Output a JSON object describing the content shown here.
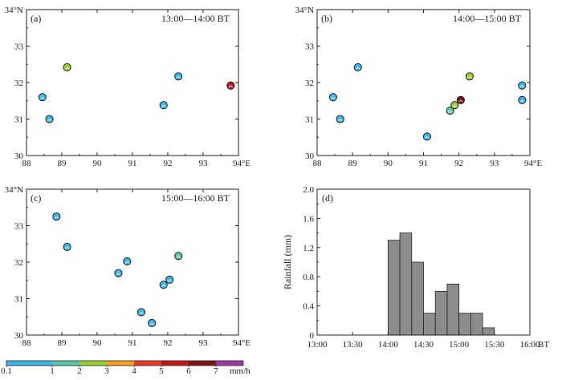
{
  "chart_data": [
    {
      "id": "a",
      "type": "scatter",
      "panel_label": "(a)",
      "time_label": "13:00—14:00 BT",
      "xlim": [
        88,
        94
      ],
      "ylim": [
        30,
        34
      ],
      "x_ticks": [
        "88",
        "89",
        "90",
        "91",
        "92",
        "93",
        "94°E"
      ],
      "y_ticks": [
        "30",
        "31",
        "32",
        "33",
        "34°N"
      ],
      "points": [
        {
          "lon": 89.15,
          "lat": 32.42,
          "rain": 2.5
        },
        {
          "lon": 88.45,
          "lat": 31.6,
          "rain": 0.5
        },
        {
          "lon": 88.65,
          "lat": 31.0,
          "rain": 0.5
        },
        {
          "lon": 91.88,
          "lat": 31.38,
          "rain": 0.5
        },
        {
          "lon": 92.3,
          "lat": 32.17,
          "rain": 0.5
        },
        {
          "lon": 93.78,
          "lat": 31.92,
          "rain": 5.5
        }
      ]
    },
    {
      "id": "b",
      "type": "scatter",
      "panel_label": "(b)",
      "time_label": "14:00—15:00 BT",
      "xlim": [
        88,
        94
      ],
      "ylim": [
        30,
        34
      ],
      "x_ticks": [
        "88",
        "89",
        "90",
        "91",
        "92",
        "93",
        "94°E"
      ],
      "y_ticks": [
        "30",
        "31",
        "32",
        "33",
        "34°N"
      ],
      "points": [
        {
          "lon": 89.15,
          "lat": 32.42,
          "rain": 0.5
        },
        {
          "lon": 88.45,
          "lat": 31.6,
          "rain": 0.5
        },
        {
          "lon": 88.65,
          "lat": 31.0,
          "rain": 0.5
        },
        {
          "lon": 91.1,
          "lat": 30.52,
          "rain": 0.5
        },
        {
          "lon": 91.75,
          "lat": 31.23,
          "rain": 1.5
        },
        {
          "lon": 91.88,
          "lat": 31.38,
          "rain": 2.5
        },
        {
          "lon": 92.05,
          "lat": 31.52,
          "rain": 6.5
        },
        {
          "lon": 92.3,
          "lat": 32.17,
          "rain": 2.5
        },
        {
          "lon": 93.78,
          "lat": 31.92,
          "rain": 0.5
        },
        {
          "lon": 93.78,
          "lat": 31.52,
          "rain": 0.5
        }
      ]
    },
    {
      "id": "c",
      "type": "scatter",
      "panel_label": "(c)",
      "time_label": "15:00—16:00 BT",
      "xlim": [
        88,
        94
      ],
      "ylim": [
        30,
        34
      ],
      "x_ticks": [
        "88",
        "89",
        "90",
        "91",
        "92",
        "93",
        "94°E"
      ],
      "y_ticks": [
        "30",
        "31",
        "32",
        "33",
        "34°N"
      ],
      "points": [
        {
          "lon": 88.85,
          "lat": 33.25,
          "rain": 0.5
        },
        {
          "lon": 89.15,
          "lat": 32.42,
          "rain": 0.5
        },
        {
          "lon": 90.85,
          "lat": 32.02,
          "rain": 0.5
        },
        {
          "lon": 90.6,
          "lat": 31.7,
          "rain": 0.5
        },
        {
          "lon": 91.25,
          "lat": 30.63,
          "rain": 0.5
        },
        {
          "lon": 91.55,
          "lat": 30.33,
          "rain": 0.5
        },
        {
          "lon": 91.88,
          "lat": 31.38,
          "rain": 0.5
        },
        {
          "lon": 92.05,
          "lat": 31.52,
          "rain": 0.5
        },
        {
          "lon": 92.3,
          "lat": 32.17,
          "rain": 1.5
        }
      ]
    },
    {
      "id": "d",
      "type": "bar",
      "panel_label": "(d)",
      "ylabel": "Rainfall (mm)",
      "ylim": [
        0,
        2.0
      ],
      "y_ticks": [
        "0",
        "0.4",
        "0.8",
        "1.2",
        "1.6",
        "2.0"
      ],
      "x_ticks": [
        "13:00",
        "13:30",
        "14:00",
        "14:30",
        "15:00",
        "15:30",
        "16:00"
      ],
      "x_unit": "BT",
      "x_range_minutes": [
        0,
        180
      ],
      "bin_minutes": 10,
      "bars": [
        {
          "start_min": 60,
          "value": 1.3
        },
        {
          "start_min": 70,
          "value": 1.4
        },
        {
          "start_min": 80,
          "value": 1.0
        },
        {
          "start_min": 90,
          "value": 0.3
        },
        {
          "start_min": 100,
          "value": 0.6
        },
        {
          "start_min": 110,
          "value": 0.7
        },
        {
          "start_min": 120,
          "value": 0.3
        },
        {
          "start_min": 130,
          "value": 0.3
        },
        {
          "start_min": 140,
          "value": 0.1
        }
      ]
    }
  ],
  "colorbar": {
    "labels": [
      "0.1",
      "1",
      "2",
      "3",
      "4",
      "5",
      "6",
      "7"
    ],
    "unit": "mm/h",
    "colors": [
      "#3fb6ea",
      "#5cc6a8",
      "#9acd32",
      "#f7a01e",
      "#ee3a24",
      "#c3171e",
      "#7d1318",
      "#9b3aa3"
    ]
  },
  "colors": {
    "axis": "#222222",
    "bar_fill": "#8c8c8c",
    "bar_edge": "#222222",
    "marker_ring": "#111111"
  }
}
